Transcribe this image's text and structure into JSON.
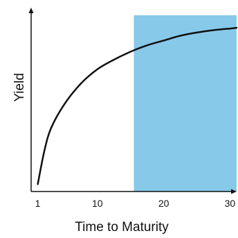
{
  "chart_data": {
    "type": "line",
    "title": "",
    "xlabel": "Time to Maturity",
    "ylabel": "Yield",
    "xlim": [
      0,
      31
    ],
    "ylim": [
      0,
      1
    ],
    "xticks": [
      1,
      10,
      20,
      30
    ],
    "xtick_labels": [
      "1",
      "10",
      "20",
      "30"
    ],
    "yticks": [],
    "grid": false,
    "legend": "none",
    "shaded_region": {
      "x_start": 15.5,
      "x_end": 31,
      "color": "#87c9e9"
    },
    "series": [
      {
        "color": "#111111",
        "x": [
          1,
          2,
          3,
          5,
          7.5,
          10,
          12.5,
          15,
          17.5,
          20,
          22.5,
          25,
          27.5,
          30,
          31
        ],
        "y": [
          0.02,
          0.23,
          0.37,
          0.52,
          0.65,
          0.74,
          0.8,
          0.85,
          0.89,
          0.92,
          0.95,
          0.97,
          0.985,
          0.995,
          1.0
        ]
      }
    ]
  }
}
